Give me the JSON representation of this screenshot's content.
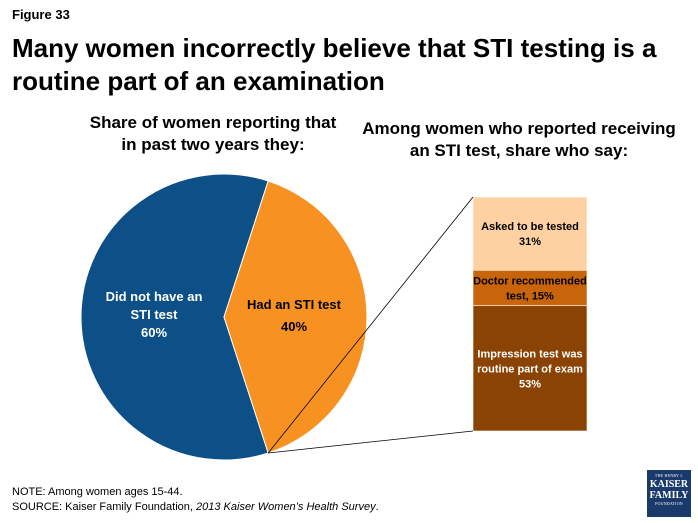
{
  "figure_label": "Figure 33",
  "title": "Many women incorrectly believe that STI testing is a routine part of an examination",
  "chart_data": [
    {
      "type": "pie",
      "title": "Share of women reporting that in past two years they:",
      "categories": [
        "Did not have an STI test",
        "Had an STI test"
      ],
      "values": [
        60,
        40
      ],
      "value_labels": [
        "60%",
        "40%"
      ],
      "colors": [
        "#0d5087",
        "#f79222"
      ]
    },
    {
      "type": "bar",
      "stacked": true,
      "title": "Among women who reported receiving an STI test, share who say:",
      "categories": [
        "Asked to be tested",
        "Doctor recommended test",
        "Impression test was routine part of exam"
      ],
      "values": [
        31,
        15,
        53
      ],
      "labels": [
        [
          "Asked to be tested",
          "31%"
        ],
        [
          "Doctor recommended",
          "test, 15%"
        ],
        [
          "Impression test was",
          "routine part of exam",
          "53%"
        ]
      ],
      "colors": [
        "#fdd1a2",
        "#c8640a",
        "#8a4302"
      ]
    }
  ],
  "note_line": "NOTE: Among women ages 15-44.",
  "source_prefix": "SOURCE: Kaiser Family Foundation, ",
  "source_title": "2013 Kaiser Women’s Health Survey",
  "source_suffix": ".",
  "logo": {
    "line1": "THE HENRY J.",
    "line2": "KAISER",
    "line3": "FAMILY",
    "line4": "FOUNDATION"
  }
}
